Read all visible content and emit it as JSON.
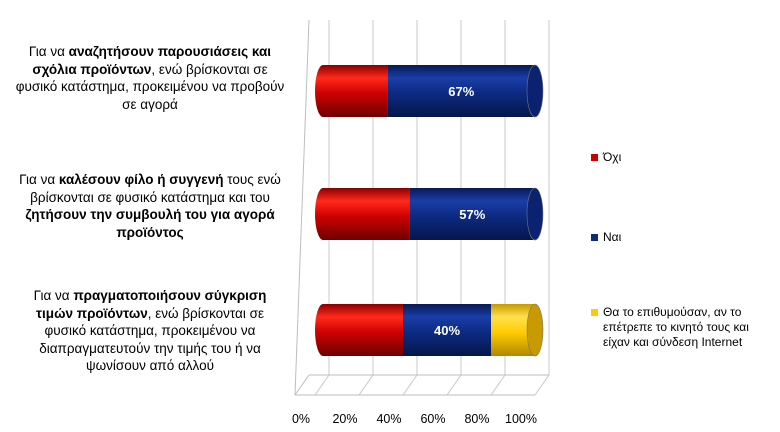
{
  "chart_data": {
    "type": "bar",
    "orientation": "horizontal",
    "stacked": true,
    "percent_stacked": true,
    "style": "3d-cylinder",
    "categories": [
      {
        "parts": [
          {
            "text": "Για να ",
            "bold": false
          },
          {
            "text": "αναζητήσουν παρουσιάσεις και σχόλια προϊόντων",
            "bold": true
          },
          {
            "text": ", ενώ βρίσκονται σε φυσικό κατάστημα, προκειμένου να προβούν σε αγορά",
            "bold": false
          }
        ]
      },
      {
        "parts": [
          {
            "text": "Για να ",
            "bold": false
          },
          {
            "text": "καλέσουν φίλο ή συγγενή",
            "bold": true
          },
          {
            "text": " τους ενώ βρίσκονται σε φυσικό κατάστημα και του ",
            "bold": false
          },
          {
            "text": "ζητήσουν την συμβουλή του για αγορά προϊόντος",
            "bold": true
          }
        ]
      },
      {
        "parts": [
          {
            "text": "Για να ",
            "bold": false
          },
          {
            "text": "πραγματοποιήσουν σύγκριση τιμών προϊόντων",
            "bold": true
          },
          {
            "text": ", ενώ βρίσκονται σε φυσικό κατάστημα, προκειμένου να διαπραγματευτούν την τιμής του ή να ψωνίσουν από αλλού",
            "bold": false
          }
        ]
      }
    ],
    "series": [
      {
        "name": "Όχι",
        "color": "#cc0000",
        "values": [
          33,
          43,
          40
        ]
      },
      {
        "name": "Ναι",
        "color": "#0c2a80",
        "values": [
          67,
          57,
          40
        ],
        "data_labels": [
          "67%",
          "57%",
          "40%"
        ]
      },
      {
        "name": "Θα το επιθυμούσαν, αν το επέτρεπε το κινητό τους και είχαν και σύνδεση Internet",
        "color": "#ffcc00",
        "values": [
          0,
          0,
          20
        ]
      }
    ],
    "x_ticks": [
      "0%",
      "20%",
      "40%",
      "60%",
      "80%",
      "100%"
    ],
    "xlim": [
      0,
      100
    ],
    "legend_position": "right",
    "grid": true,
    "title": "",
    "xlabel": "",
    "ylabel": ""
  }
}
